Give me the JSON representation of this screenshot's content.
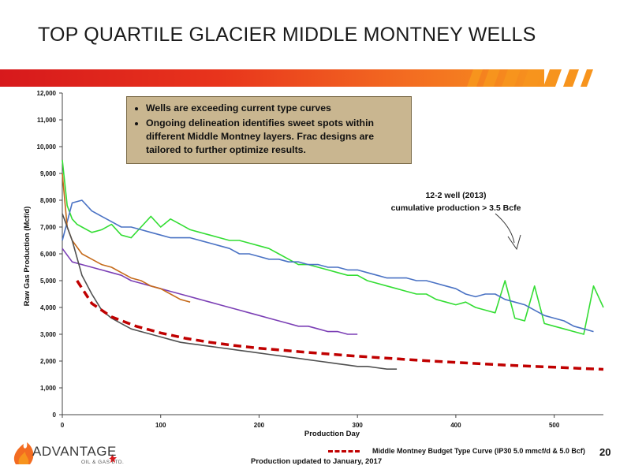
{
  "slide": {
    "title": "TOP QUARTILE GLACIER MIDDLE MONTNEY WELLS",
    "page_number": "20",
    "footnote": "Production updated to January, 2017",
    "logo": {
      "name": "ADVANTAGE",
      "sub": "OIL & GAS LTD."
    },
    "banner_colors": [
      "#d7191c",
      "#e8341c",
      "#f36c21",
      "#f7941d"
    ]
  },
  "callout": {
    "bullets": [
      "Wells are exceeding current type curves",
      "Ongoing delineation identifies sweet spots within different Middle Montney layers.  Frac designs are tailored to further optimize results."
    ]
  },
  "annotation": {
    "line1": "12-2 well (2013)",
    "line2": "cumulative production > 3.5 Bcfe"
  },
  "chart_data": {
    "type": "line",
    "xlabel": "Production Day",
    "ylabel": "Raw Gas Production  (Mcf/d)",
    "xlim": [
      0,
      550
    ],
    "ylim": [
      0,
      12000
    ],
    "xticks": [
      0,
      100,
      200,
      300,
      400,
      500
    ],
    "yticks": [
      0,
      1000,
      2000,
      3000,
      4000,
      5000,
      6000,
      7000,
      8000,
      9000,
      10000,
      11000,
      12000
    ],
    "ytick_labels": [
      "0",
      "1,000",
      "2,000",
      "3,000",
      "4,000",
      "5,000",
      "6,000",
      "7,000",
      "8,000",
      "9,000",
      "10,000",
      "11,000",
      "12,000"
    ],
    "grid": false,
    "legend": "bottom",
    "series": [
      {
        "name": "",
        "color": "#33dd33",
        "x": [
          0,
          5,
          10,
          15,
          20,
          30,
          40,
          50,
          60,
          70,
          80,
          90,
          100,
          110,
          120,
          130,
          140,
          150,
          160,
          170,
          180,
          190,
          200,
          210,
          220,
          230,
          240,
          250,
          260,
          270,
          280,
          290,
          300,
          310,
          320,
          330,
          340,
          350,
          360,
          370,
          380,
          390,
          400,
          410,
          420,
          430,
          440,
          450,
          460,
          470,
          480,
          490,
          500,
          510,
          520,
          530,
          540,
          550
        ],
        "y": [
          9500,
          7800,
          7300,
          7100,
          7000,
          6800,
          6900,
          7100,
          6700,
          6600,
          7000,
          7400,
          7000,
          7300,
          7100,
          6900,
          6800,
          6700,
          6600,
          6500,
          6500,
          6400,
          6300,
          6200,
          6000,
          5800,
          5600,
          5600,
          5500,
          5400,
          5300,
          5200,
          5200,
          5000,
          4900,
          4800,
          4700,
          4600,
          4500,
          4500,
          4300,
          4200,
          4100,
          4200,
          4000,
          3900,
          3800,
          5000,
          3600,
          3500,
          4800,
          3400,
          3300,
          3200,
          3100,
          3000,
          4800,
          4000
        ]
      },
      {
        "name": "",
        "color": "#4a72c4",
        "x": [
          0,
          10,
          20,
          30,
          40,
          50,
          60,
          70,
          80,
          90,
          100,
          110,
          120,
          130,
          140,
          150,
          160,
          170,
          180,
          190,
          200,
          210,
          220,
          230,
          240,
          250,
          260,
          270,
          280,
          290,
          300,
          310,
          320,
          330,
          340,
          350,
          360,
          370,
          380,
          390,
          400,
          410,
          420,
          430,
          440,
          450,
          460,
          470,
          480,
          490,
          500,
          510,
          520,
          530,
          540
        ],
        "y": [
          6500,
          7900,
          8000,
          7600,
          7400,
          7200,
          7000,
          7000,
          6900,
          6800,
          6700,
          6600,
          6600,
          6600,
          6500,
          6400,
          6300,
          6200,
          6000,
          6000,
          5900,
          5800,
          5800,
          5700,
          5700,
          5600,
          5600,
          5500,
          5500,
          5400,
          5400,
          5300,
          5200,
          5100,
          5100,
          5100,
          5000,
          5000,
          4900,
          4800,
          4700,
          4500,
          4400,
          4500,
          4500,
          4300,
          4200,
          4100,
          3900,
          3700,
          3600,
          3500,
          3300,
          3200,
          3100
        ]
      },
      {
        "name": "",
        "color": "#7b3fb5",
        "x": [
          0,
          10,
          20,
          30,
          40,
          50,
          60,
          70,
          80,
          90,
          100,
          110,
          120,
          130,
          140,
          150,
          160,
          170,
          180,
          190,
          200,
          210,
          220,
          230,
          240,
          250,
          260,
          270,
          280,
          290,
          300
        ],
        "y": [
          6200,
          5700,
          5600,
          5500,
          5400,
          5300,
          5200,
          5000,
          4900,
          4800,
          4700,
          4600,
          4500,
          4400,
          4300,
          4200,
          4100,
          4000,
          3900,
          3800,
          3700,
          3600,
          3500,
          3400,
          3300,
          3300,
          3200,
          3100,
          3100,
          3000,
          3000
        ]
      },
      {
        "name": "",
        "color": "#c56a1a",
        "x": [
          0,
          5,
          10,
          20,
          30,
          40,
          50,
          60,
          70,
          80,
          90,
          100,
          110,
          120,
          130
        ],
        "y": [
          9000,
          7000,
          6500,
          6000,
          5800,
          5600,
          5500,
          5300,
          5100,
          5000,
          4800,
          4700,
          4500,
          4300,
          4200
        ]
      },
      {
        "name": "",
        "color": "#505050",
        "x": [
          0,
          10,
          20,
          30,
          40,
          50,
          60,
          70,
          80,
          90,
          100,
          110,
          120,
          130,
          140,
          150,
          160,
          170,
          180,
          190,
          200,
          210,
          220,
          230,
          240,
          250,
          260,
          270,
          280,
          290,
          300,
          310,
          320,
          330,
          340
        ],
        "y": [
          7500,
          6500,
          5200,
          4500,
          3900,
          3600,
          3400,
          3200,
          3100,
          3000,
          2900,
          2800,
          2700,
          2650,
          2600,
          2550,
          2500,
          2450,
          2400,
          2350,
          2300,
          2250,
          2200,
          2150,
          2100,
          2050,
          2000,
          1950,
          1900,
          1850,
          1800,
          1800,
          1750,
          1700,
          1700
        ]
      },
      {
        "name": "Middle Montney Budget Type Curve (IP30 5.0 mmcf/d & 5.0 Bcf)",
        "color": "#c00000",
        "dashed": true,
        "x": [
          15,
          30,
          50,
          75,
          100,
          125,
          150,
          175,
          200,
          225,
          250,
          275,
          300,
          325,
          350,
          375,
          400,
          425,
          450,
          475,
          500,
          525,
          550
        ],
        "y": [
          5000,
          4150,
          3650,
          3300,
          3050,
          2850,
          2700,
          2580,
          2480,
          2400,
          2320,
          2250,
          2180,
          2120,
          2060,
          2000,
          1950,
          1900,
          1850,
          1810,
          1770,
          1730,
          1690
        ]
      }
    ]
  }
}
